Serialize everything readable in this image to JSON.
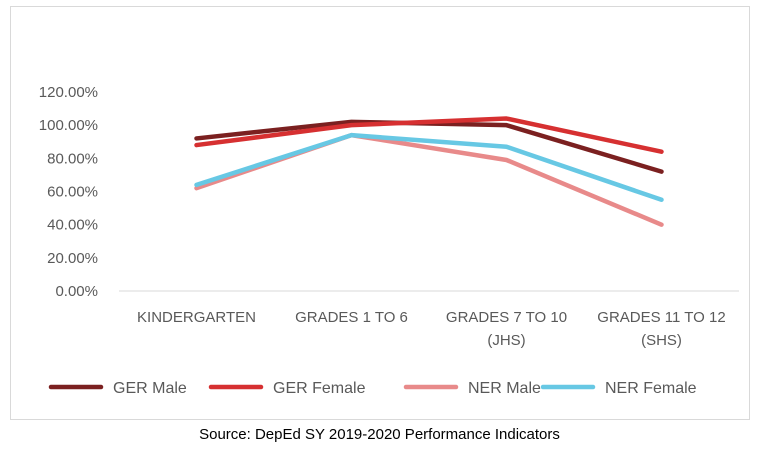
{
  "chart_data": {
    "type": "line",
    "title": "",
    "xlabel": "",
    "ylabel": "",
    "categories": [
      [
        "KINDERGARTEN"
      ],
      [
        "GRADES 1 TO 6"
      ],
      [
        "GRADES 7 TO 10",
        "(JHS)"
      ],
      [
        "GRADES 11 TO 12",
        "(SHS)"
      ]
    ],
    "ylim": [
      0,
      120
    ],
    "yticks": [
      "0.00%",
      "20.00%",
      "40.00%",
      "60.00%",
      "80.00%",
      "100.00%",
      "120.00%"
    ],
    "grid": false,
    "legend_position": "bottom",
    "series": [
      {
        "name": "GER Male",
        "color": "#7b2020",
        "values": [
          92,
          102,
          100,
          72
        ]
      },
      {
        "name": "GER Female",
        "color": "#d63031",
        "values": [
          88,
          100,
          104,
          84
        ]
      },
      {
        "name": "NER Male",
        "color": "#e88a8a",
        "values": [
          62,
          94,
          79,
          40
        ]
      },
      {
        "name": "NER Female",
        "color": "#67c8e4",
        "values": [
          64,
          94,
          87,
          55
        ]
      }
    ]
  },
  "source_note": "Source: DepEd SY 2019-2020 Performance Indicators"
}
